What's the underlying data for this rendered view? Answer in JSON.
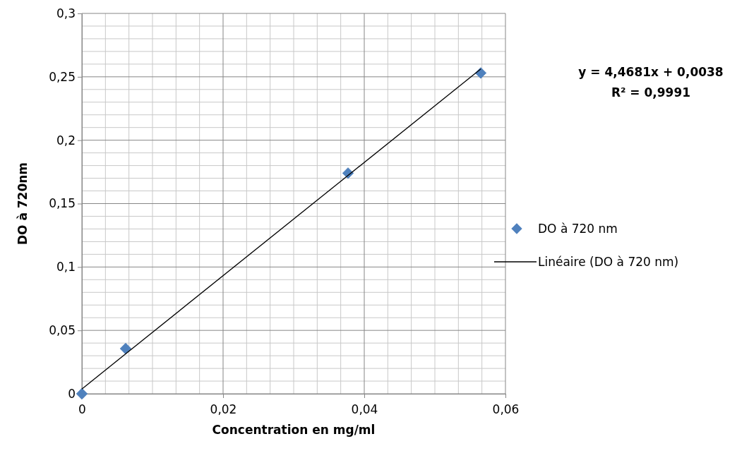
{
  "chart_data": {
    "type": "scatter",
    "xlabel": "Concentration en mg/ml",
    "ylabel": "DO à 720nm",
    "xlim": [
      0,
      0.06
    ],
    "xticks": [
      {
        "value": 0,
        "label": "0"
      },
      {
        "value": 0.02,
        "label": "0,02"
      },
      {
        "value": 0.04,
        "label": "0,04"
      },
      {
        "value": 0.06,
        "label": "0,06"
      }
    ],
    "ylim": [
      0,
      0.3
    ],
    "yticks": [
      {
        "value": 0,
        "label": "0"
      },
      {
        "value": 0.05,
        "label": "0,05"
      },
      {
        "value": 0.1,
        "label": "0,1"
      },
      {
        "value": 0.15,
        "label": "0,15"
      },
      {
        "value": 0.2,
        "label": "0,2"
      },
      {
        "value": 0.25,
        "label": "0,25"
      },
      {
        "value": 0.3,
        "label": "0,3"
      }
    ],
    "grid": true,
    "legend": "right",
    "series": [
      {
        "name": "DO à 720 nm",
        "marker": "diamond",
        "color": "#4f81bd",
        "x": [
          0,
          0.0062,
          0.0377,
          0.0565
        ],
        "values": [
          0,
          0.0356,
          0.174,
          0.253
        ]
      },
      {
        "name": "Linéaire (DO à 720 nm)",
        "type": "line",
        "marker": "none",
        "line_style": "solid",
        "color": "#000000",
        "x": [
          0,
          0.0565
        ],
        "values": [
          0.0038,
          0.2562
        ]
      }
    ],
    "annotations": [
      "y = 4,4681x + 0,0038",
      "R² = 0,9991"
    ]
  }
}
